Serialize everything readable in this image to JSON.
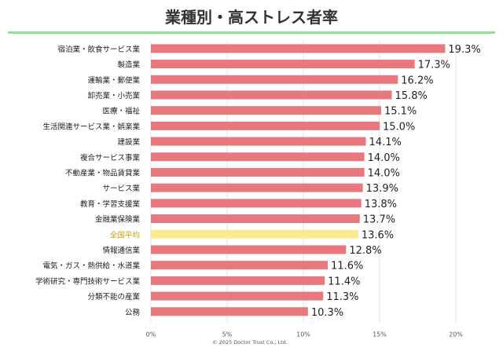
{
  "chart_data": {
    "type": "bar",
    "orientation": "horizontal",
    "title": "業種別・高ストレス者率",
    "categories": [
      "宿泊業・飲食サービス業",
      "製造業",
      "運輸業・郵便業",
      "卸売業・小売業",
      "医療・福祉",
      "生活関連サービス業・娯楽業",
      "建設業",
      "複合サービス事業",
      "不動産業・物品賃貸業",
      "サービス業",
      "教育・学習支援業",
      "金融業保険業",
      "全国平均",
      "情報通信業",
      "電気・ガス・熱供給・水道業",
      "学術研究・専門技術サービス業",
      "分類不能の産業",
      "公務"
    ],
    "values": [
      19.3,
      17.3,
      16.2,
      15.8,
      15.1,
      15.0,
      14.1,
      14.0,
      14.0,
      13.9,
      13.8,
      13.7,
      13.6,
      12.8,
      11.6,
      11.4,
      11.3,
      10.3
    ],
    "value_labels": [
      "19.3%",
      "17.3%",
      "16.2%",
      "15.8%",
      "15.1%",
      "15.0%",
      "14.1%",
      "14.0%",
      "14.0%",
      "13.9%",
      "13.8%",
      "13.7%",
      "13.6%",
      "12.8%",
      "11.6%",
      "11.4%",
      "11.3%",
      "10.3%"
    ],
    "highlight_category": "全国平均",
    "xlim": [
      0,
      20
    ],
    "x_ticks": [
      0,
      5,
      10,
      15,
      20
    ],
    "x_tick_labels": [
      "0%",
      "5%",
      "10%",
      "15%",
      "20%"
    ],
    "grid": true,
    "xlabel": "",
    "ylabel": ""
  },
  "colors": {
    "bar": "#e8787d",
    "highlight_bar": "#f6eb90",
    "highlight_label": "#c9a000",
    "title_rule": "#90e09b"
  },
  "footer": {
    "copyright": "© 2025 Doctor Trust Co., Ltd."
  }
}
